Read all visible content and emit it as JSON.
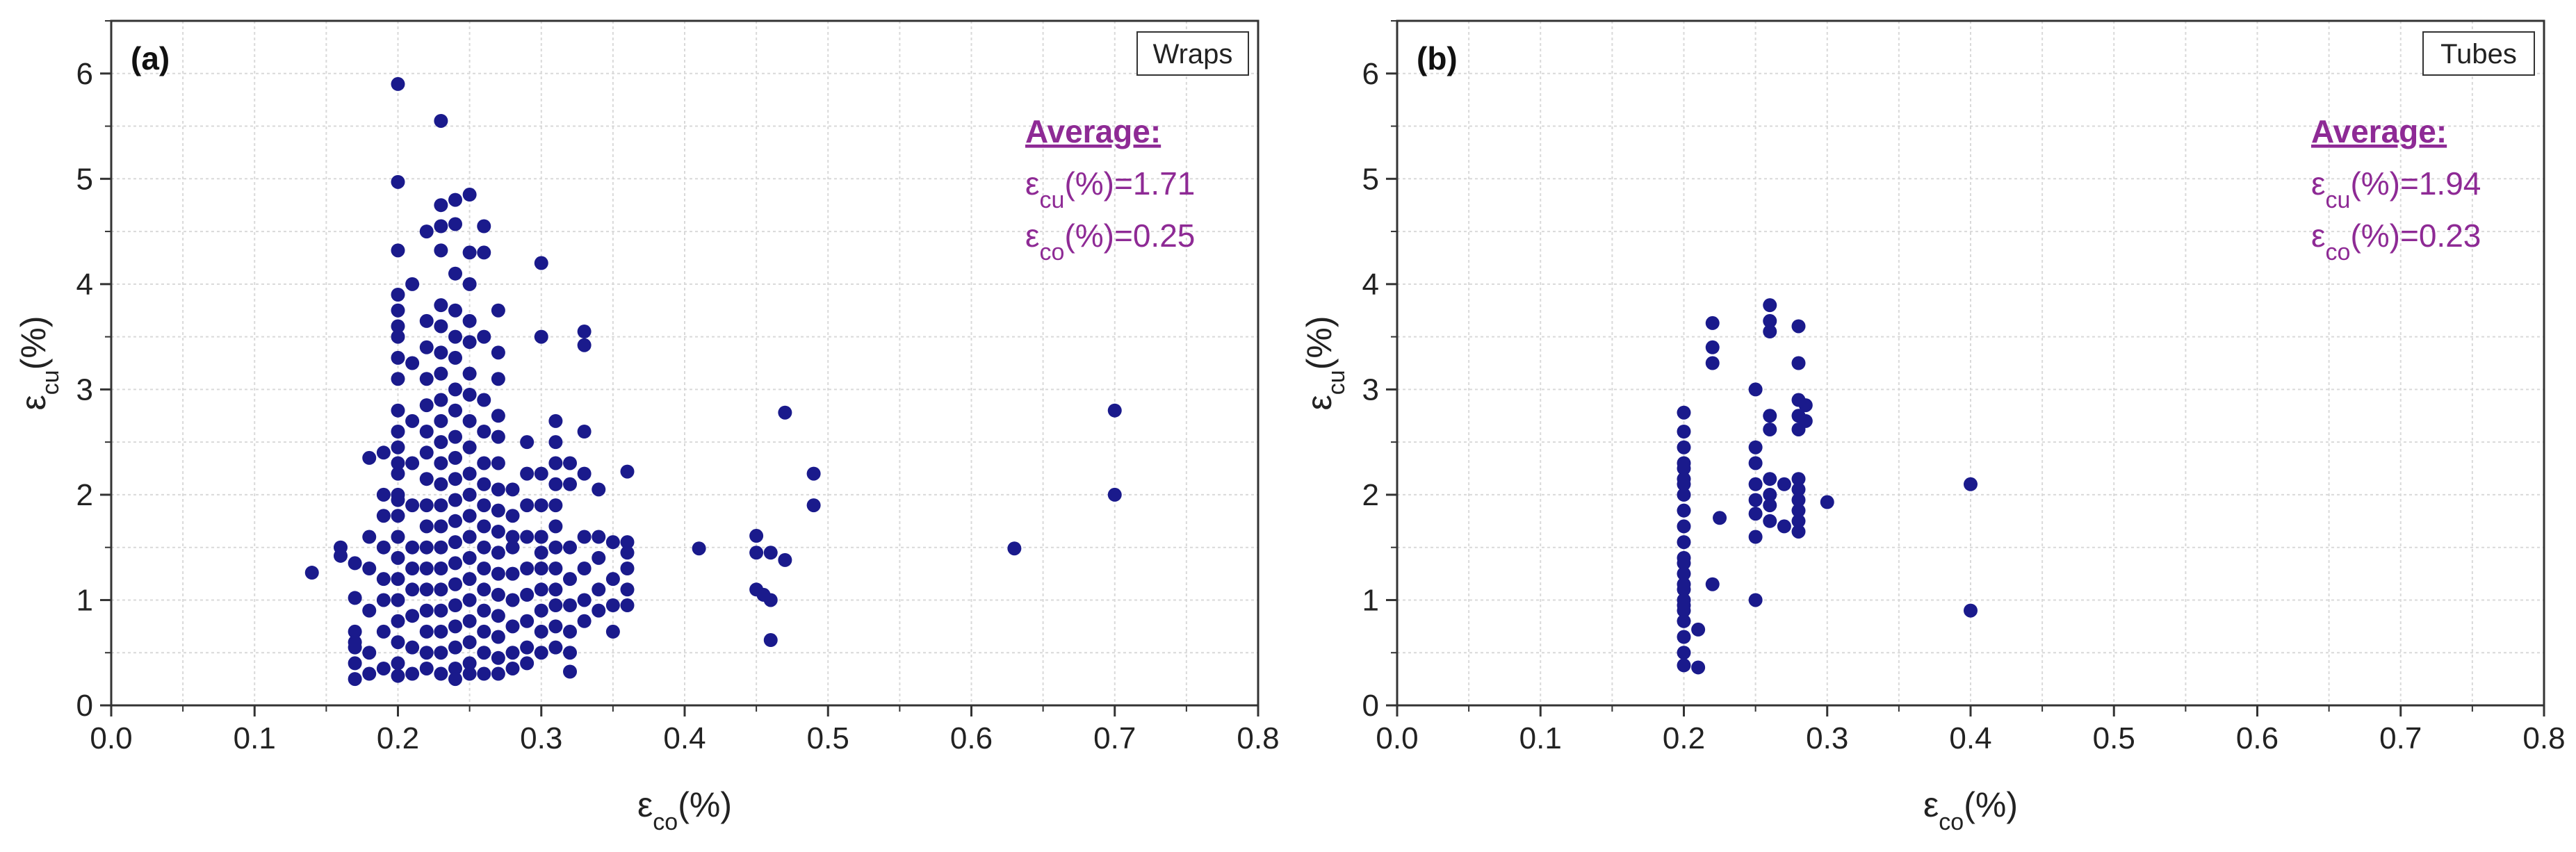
{
  "colors": {
    "marker": "#1a1a8c",
    "axis": "#333333",
    "grid": "#d9d9d9",
    "annotation": "#8e2a95"
  },
  "chart_data": [
    {
      "type": "scatter",
      "panel_label": "(a)",
      "legend": "Wraps",
      "xlabel": {
        "symbol": "ε",
        "sub": "co",
        "suffix": "(%)"
      },
      "ylabel": {
        "symbol": "ε",
        "sub": "cu",
        "suffix": "(%)"
      },
      "xlim": [
        0.0,
        0.8
      ],
      "ylim": [
        0,
        6.5
      ],
      "xticks": [
        "0.0",
        "0.1",
        "0.2",
        "0.3",
        "0.4",
        "0.5",
        "0.6",
        "0.7",
        "0.8"
      ],
      "yticks": [
        "0",
        "1",
        "2",
        "3",
        "4",
        "5",
        "6"
      ],
      "grid": true,
      "annotation": {
        "title": "Average:",
        "line1": {
          "symbol": "ε",
          "sub": "cu",
          "suffix": "(%)=1.71"
        },
        "line2": {
          "symbol": "ε",
          "sub": "co",
          "suffix": "(%)=0.25"
        }
      },
      "points": [
        [
          0.14,
          1.26
        ],
        [
          0.16,
          1.5
        ],
        [
          0.16,
          1.42
        ],
        [
          0.17,
          1.35
        ],
        [
          0.17,
          1.02
        ],
        [
          0.17,
          0.7
        ],
        [
          0.17,
          0.55
        ],
        [
          0.17,
          0.4
        ],
        [
          0.17,
          0.25
        ],
        [
          0.17,
          0.6
        ],
        [
          0.18,
          1.3
        ],
        [
          0.18,
          0.9
        ],
        [
          0.18,
          0.5
        ],
        [
          0.18,
          0.3
        ],
        [
          0.18,
          1.6
        ],
        [
          0.18,
          2.35
        ],
        [
          0.19,
          1.2
        ],
        [
          0.19,
          1.5
        ],
        [
          0.19,
          1.8
        ],
        [
          0.19,
          2.0
        ],
        [
          0.19,
          2.4
        ],
        [
          0.19,
          0.35
        ],
        [
          0.19,
          0.7
        ],
        [
          0.19,
          1.0
        ],
        [
          0.2,
          5.9
        ],
        [
          0.2,
          4.97
        ],
        [
          0.2,
          4.32
        ],
        [
          0.2,
          3.9
        ],
        [
          0.2,
          3.75
        ],
        [
          0.2,
          3.5
        ],
        [
          0.2,
          3.3
        ],
        [
          0.2,
          2.8
        ],
        [
          0.2,
          2.6
        ],
        [
          0.2,
          2.45
        ],
        [
          0.2,
          2.2
        ],
        [
          0.2,
          2.0
        ],
        [
          0.2,
          1.8
        ],
        [
          0.2,
          1.6
        ],
        [
          0.2,
          1.4
        ],
        [
          0.2,
          1.2
        ],
        [
          0.2,
          1.0
        ],
        [
          0.2,
          0.8
        ],
        [
          0.2,
          0.6
        ],
        [
          0.2,
          0.4
        ],
        [
          0.2,
          0.28
        ],
        [
          0.2,
          3.1
        ],
        [
          0.2,
          3.6
        ],
        [
          0.2,
          2.3
        ],
        [
          0.2,
          1.95
        ],
        [
          0.21,
          1.9
        ],
        [
          0.21,
          1.5
        ],
        [
          0.21,
          1.1
        ],
        [
          0.21,
          0.85
        ],
        [
          0.21,
          0.55
        ],
        [
          0.21,
          0.3
        ],
        [
          0.21,
          2.3
        ],
        [
          0.21,
          2.7
        ],
        [
          0.21,
          3.25
        ],
        [
          0.21,
          4.0
        ],
        [
          0.21,
          1.3
        ],
        [
          0.22,
          4.5
        ],
        [
          0.22,
          3.65
        ],
        [
          0.22,
          3.4
        ],
        [
          0.22,
          3.1
        ],
        [
          0.22,
          2.85
        ],
        [
          0.22,
          2.6
        ],
        [
          0.22,
          2.4
        ],
        [
          0.22,
          2.15
        ],
        [
          0.22,
          1.9
        ],
        [
          0.22,
          1.7
        ],
        [
          0.22,
          1.5
        ],
        [
          0.22,
          1.3
        ],
        [
          0.22,
          1.1
        ],
        [
          0.22,
          0.9
        ],
        [
          0.22,
          0.7
        ],
        [
          0.22,
          0.5
        ],
        [
          0.22,
          0.35
        ],
        [
          0.23,
          5.55
        ],
        [
          0.23,
          4.75
        ],
        [
          0.23,
          4.55
        ],
        [
          0.23,
          4.32
        ],
        [
          0.23,
          3.8
        ],
        [
          0.23,
          3.6
        ],
        [
          0.23,
          3.35
        ],
        [
          0.23,
          3.15
        ],
        [
          0.23,
          2.9
        ],
        [
          0.23,
          2.7
        ],
        [
          0.23,
          2.5
        ],
        [
          0.23,
          2.3
        ],
        [
          0.23,
          2.1
        ],
        [
          0.23,
          1.9
        ],
        [
          0.23,
          1.7
        ],
        [
          0.23,
          1.5
        ],
        [
          0.23,
          1.3
        ],
        [
          0.23,
          1.1
        ],
        [
          0.23,
          0.9
        ],
        [
          0.23,
          0.7
        ],
        [
          0.23,
          0.5
        ],
        [
          0.23,
          0.3
        ],
        [
          0.24,
          4.8
        ],
        [
          0.24,
          4.57
        ],
        [
          0.24,
          4.1
        ],
        [
          0.24,
          3.75
        ],
        [
          0.24,
          3.5
        ],
        [
          0.24,
          3.3
        ],
        [
          0.24,
          3.0
        ],
        [
          0.24,
          2.8
        ],
        [
          0.24,
          2.55
        ],
        [
          0.24,
          2.35
        ],
        [
          0.24,
          2.15
        ],
        [
          0.24,
          1.95
        ],
        [
          0.24,
          1.75
        ],
        [
          0.24,
          1.55
        ],
        [
          0.24,
          1.35
        ],
        [
          0.24,
          1.15
        ],
        [
          0.24,
          0.95
        ],
        [
          0.24,
          0.75
        ],
        [
          0.24,
          0.55
        ],
        [
          0.24,
          0.35
        ],
        [
          0.24,
          0.25
        ],
        [
          0.25,
          4.85
        ],
        [
          0.25,
          4.3
        ],
        [
          0.25,
          4.0
        ],
        [
          0.25,
          3.65
        ],
        [
          0.25,
          3.45
        ],
        [
          0.25,
          3.15
        ],
        [
          0.25,
          2.95
        ],
        [
          0.25,
          2.7
        ],
        [
          0.25,
          2.45
        ],
        [
          0.25,
          2.2
        ],
        [
          0.25,
          2.0
        ],
        [
          0.25,
          1.8
        ],
        [
          0.25,
          1.6
        ],
        [
          0.25,
          1.4
        ],
        [
          0.25,
          1.2
        ],
        [
          0.25,
          1.0
        ],
        [
          0.25,
          0.8
        ],
        [
          0.25,
          0.6
        ],
        [
          0.25,
          0.4
        ],
        [
          0.25,
          0.3
        ],
        [
          0.26,
          4.55
        ],
        [
          0.26,
          4.3
        ],
        [
          0.26,
          3.5
        ],
        [
          0.26,
          2.9
        ],
        [
          0.26,
          2.6
        ],
        [
          0.26,
          2.3
        ],
        [
          0.26,
          2.1
        ],
        [
          0.26,
          1.9
        ],
        [
          0.26,
          1.7
        ],
        [
          0.26,
          1.5
        ],
        [
          0.26,
          1.3
        ],
        [
          0.26,
          1.1
        ],
        [
          0.26,
          0.9
        ],
        [
          0.26,
          0.7
        ],
        [
          0.26,
          0.5
        ],
        [
          0.26,
          0.3
        ],
        [
          0.27,
          3.75
        ],
        [
          0.27,
          3.35
        ],
        [
          0.27,
          3.1
        ],
        [
          0.27,
          2.75
        ],
        [
          0.27,
          2.55
        ],
        [
          0.27,
          2.3
        ],
        [
          0.27,
          2.05
        ],
        [
          0.27,
          1.85
        ],
        [
          0.27,
          1.65
        ],
        [
          0.27,
          1.45
        ],
        [
          0.27,
          1.25
        ],
        [
          0.27,
          1.05
        ],
        [
          0.27,
          0.85
        ],
        [
          0.27,
          0.65
        ],
        [
          0.27,
          0.45
        ],
        [
          0.27,
          0.3
        ],
        [
          0.28,
          2.05
        ],
        [
          0.28,
          1.8
        ],
        [
          0.28,
          1.5
        ],
        [
          0.28,
          1.25
        ],
        [
          0.28,
          1.0
        ],
        [
          0.28,
          0.75
        ],
        [
          0.28,
          0.5
        ],
        [
          0.28,
          0.35
        ],
        [
          0.28,
          1.6
        ],
        [
          0.29,
          2.5
        ],
        [
          0.29,
          2.2
        ],
        [
          0.29,
          1.9
        ],
        [
          0.29,
          1.6
        ],
        [
          0.29,
          1.3
        ],
        [
          0.29,
          1.05
        ],
        [
          0.29,
          0.8
        ],
        [
          0.29,
          0.55
        ],
        [
          0.29,
          0.4
        ],
        [
          0.3,
          4.2
        ],
        [
          0.3,
          3.5
        ],
        [
          0.3,
          2.2
        ],
        [
          0.3,
          1.9
        ],
        [
          0.3,
          1.6
        ],
        [
          0.3,
          1.3
        ],
        [
          0.3,
          1.1
        ],
        [
          0.3,
          0.9
        ],
        [
          0.3,
          0.7
        ],
        [
          0.3,
          0.5
        ],
        [
          0.3,
          1.45
        ],
        [
          0.31,
          2.7
        ],
        [
          0.31,
          2.5
        ],
        [
          0.31,
          2.3
        ],
        [
          0.31,
          2.1
        ],
        [
          0.31,
          1.9
        ],
        [
          0.31,
          1.7
        ],
        [
          0.31,
          1.5
        ],
        [
          0.31,
          1.3
        ],
        [
          0.31,
          1.1
        ],
        [
          0.31,
          0.95
        ],
        [
          0.31,
          0.75
        ],
        [
          0.31,
          0.55
        ],
        [
          0.32,
          2.3
        ],
        [
          0.32,
          2.1
        ],
        [
          0.32,
          1.5
        ],
        [
          0.32,
          1.2
        ],
        [
          0.32,
          0.95
        ],
        [
          0.32,
          0.7
        ],
        [
          0.32,
          0.5
        ],
        [
          0.32,
          0.32
        ],
        [
          0.33,
          3.55
        ],
        [
          0.33,
          3.42
        ],
        [
          0.33,
          2.6
        ],
        [
          0.33,
          2.2
        ],
        [
          0.33,
          1.6
        ],
        [
          0.33,
          1.3
        ],
        [
          0.33,
          1.0
        ],
        [
          0.33,
          0.8
        ],
        [
          0.34,
          2.05
        ],
        [
          0.34,
          1.6
        ],
        [
          0.34,
          1.4
        ],
        [
          0.34,
          1.1
        ],
        [
          0.34,
          0.9
        ],
        [
          0.35,
          1.55
        ],
        [
          0.35,
          1.2
        ],
        [
          0.35,
          0.95
        ],
        [
          0.35,
          0.7
        ],
        [
          0.36,
          2.22
        ],
        [
          0.36,
          1.55
        ],
        [
          0.36,
          1.45
        ],
        [
          0.36,
          1.3
        ],
        [
          0.36,
          1.1
        ],
        [
          0.36,
          0.95
        ],
        [
          0.41,
          1.49
        ],
        [
          0.45,
          1.61
        ],
        [
          0.45,
          1.45
        ],
        [
          0.45,
          1.1
        ],
        [
          0.455,
          1.05
        ],
        [
          0.46,
          1.45
        ],
        [
          0.46,
          1.0
        ],
        [
          0.46,
          0.62
        ],
        [
          0.47,
          1.38
        ],
        [
          0.47,
          2.78
        ],
        [
          0.49,
          2.2
        ],
        [
          0.49,
          1.9
        ],
        [
          0.63,
          1.49
        ],
        [
          0.7,
          2.8
        ],
        [
          0.7,
          2.0
        ]
      ]
    },
    {
      "type": "scatter",
      "panel_label": "(b)",
      "legend": "Tubes",
      "xlabel": {
        "symbol": "ε",
        "sub": "co",
        "suffix": "(%)"
      },
      "ylabel": {
        "symbol": "ε",
        "sub": "cu",
        "suffix": "(%)"
      },
      "xlim": [
        0.0,
        0.8
      ],
      "ylim": [
        0,
        6.5
      ],
      "xticks": [
        "0.0",
        "0.1",
        "0.2",
        "0.3",
        "0.4",
        "0.5",
        "0.6",
        "0.7",
        "0.8"
      ],
      "yticks": [
        "0",
        "1",
        "2",
        "3",
        "4",
        "5",
        "6"
      ],
      "grid": true,
      "annotation": {
        "title": "Average:",
        "line1": {
          "symbol": "ε",
          "sub": "cu",
          "suffix": "(%)=1.94"
        },
        "line2": {
          "symbol": "ε",
          "sub": "co",
          "suffix": "(%)=0.23"
        }
      },
      "points": [
        [
          0.2,
          2.78
        ],
        [
          0.2,
          2.6
        ],
        [
          0.2,
          2.45
        ],
        [
          0.2,
          2.3
        ],
        [
          0.2,
          2.15
        ],
        [
          0.2,
          2.0
        ],
        [
          0.2,
          1.85
        ],
        [
          0.2,
          1.7
        ],
        [
          0.2,
          1.55
        ],
        [
          0.2,
          1.4
        ],
        [
          0.2,
          1.25
        ],
        [
          0.2,
          1.1
        ],
        [
          0.2,
          0.95
        ],
        [
          0.2,
          0.8
        ],
        [
          0.2,
          0.65
        ],
        [
          0.2,
          0.5
        ],
        [
          0.2,
          0.38
        ],
        [
          0.2,
          1.0
        ],
        [
          0.2,
          0.9
        ],
        [
          0.2,
          1.15
        ],
        [
          0.2,
          1.35
        ],
        [
          0.2,
          2.1
        ],
        [
          0.2,
          2.25
        ],
        [
          0.21,
          0.36
        ],
        [
          0.21,
          0.72
        ],
        [
          0.22,
          3.63
        ],
        [
          0.22,
          3.4
        ],
        [
          0.22,
          3.25
        ],
        [
          0.22,
          1.15
        ],
        [
          0.225,
          1.78
        ],
        [
          0.25,
          3.0
        ],
        [
          0.25,
          2.45
        ],
        [
          0.25,
          2.3
        ],
        [
          0.25,
          2.1
        ],
        [
          0.25,
          1.95
        ],
        [
          0.25,
          1.82
        ],
        [
          0.25,
          1.6
        ],
        [
          0.25,
          1.0
        ],
        [
          0.26,
          3.8
        ],
        [
          0.26,
          3.65
        ],
        [
          0.26,
          3.55
        ],
        [
          0.26,
          2.75
        ],
        [
          0.26,
          2.62
        ],
        [
          0.26,
          2.15
        ],
        [
          0.26,
          2.0
        ],
        [
          0.26,
          1.9
        ],
        [
          0.26,
          1.75
        ],
        [
          0.27,
          1.7
        ],
        [
          0.27,
          2.1
        ],
        [
          0.28,
          3.6
        ],
        [
          0.28,
          3.25
        ],
        [
          0.28,
          2.9
        ],
        [
          0.28,
          2.75
        ],
        [
          0.28,
          2.62
        ],
        [
          0.28,
          2.15
        ],
        [
          0.28,
          2.05
        ],
        [
          0.28,
          1.95
        ],
        [
          0.28,
          1.85
        ],
        [
          0.28,
          1.75
        ],
        [
          0.28,
          1.65
        ],
        [
          0.285,
          2.85
        ],
        [
          0.285,
          2.7
        ],
        [
          0.3,
          1.93
        ],
        [
          0.4,
          2.1
        ],
        [
          0.4,
          0.9
        ]
      ]
    }
  ]
}
